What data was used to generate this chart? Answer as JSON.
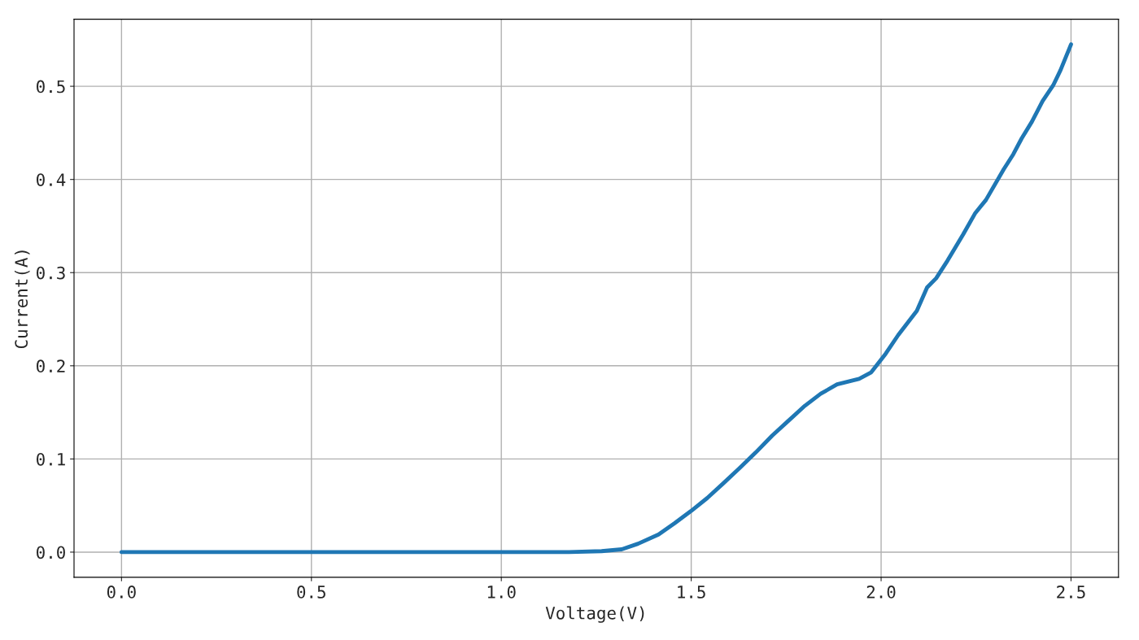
{
  "chart_data": {
    "type": "line",
    "xlabel": "Voltage(V)",
    "ylabel": "Current(A)",
    "x": [
      0,
      1.178,
      1.264,
      1.317,
      1.36,
      1.414,
      1.456,
      1.499,
      1.542,
      1.585,
      1.627,
      1.67,
      1.713,
      1.756,
      1.799,
      1.841,
      1.884,
      1.942,
      1.974,
      2.012,
      2.045,
      2.094,
      2.121,
      2.145,
      2.175,
      2.216,
      2.248,
      2.276,
      2.323,
      2.348,
      2.37,
      2.397,
      2.425,
      2.453,
      2.472,
      2.5
    ],
    "series": [
      {
        "color": "#1f77b4",
        "values": [
          0,
          0,
          0.001,
          0.003,
          0.009,
          0.019,
          0.031,
          0.044,
          0.058,
          0.074,
          0.09,
          0.107,
          0.125,
          0.141,
          0.157,
          0.17,
          0.18,
          0.186,
          0.193,
          0.213,
          0.233,
          0.259,
          0.284,
          0.294,
          0.313,
          0.341,
          0.364,
          0.378,
          0.411,
          0.427,
          0.444,
          0.462,
          0.484,
          0.501,
          0.517,
          0.545
        ]
      }
    ],
    "xlim": [
      -0.125,
      2.625
    ],
    "ylim": [
      -0.027,
      0.572
    ],
    "xticks": [
      {
        "value": 0,
        "label": "0.0"
      },
      {
        "value": 0.5,
        "label": "0.5"
      },
      {
        "value": 1,
        "label": "1.0"
      },
      {
        "value": 1.5,
        "label": "1.5"
      },
      {
        "value": 2,
        "label": "2.0"
      },
      {
        "value": 2.5,
        "label": "2.5"
      }
    ],
    "yticks": [
      {
        "value": 0,
        "label": "0.0"
      },
      {
        "value": 0.1,
        "label": "0.1"
      },
      {
        "value": 0.2,
        "label": "0.2"
      },
      {
        "value": 0.3,
        "label": "0.3"
      },
      {
        "value": 0.4,
        "label": "0.4"
      },
      {
        "value": 0.5,
        "label": "0.5"
      }
    ],
    "grid": true,
    "marker": "none",
    "line_style": "solid"
  }
}
